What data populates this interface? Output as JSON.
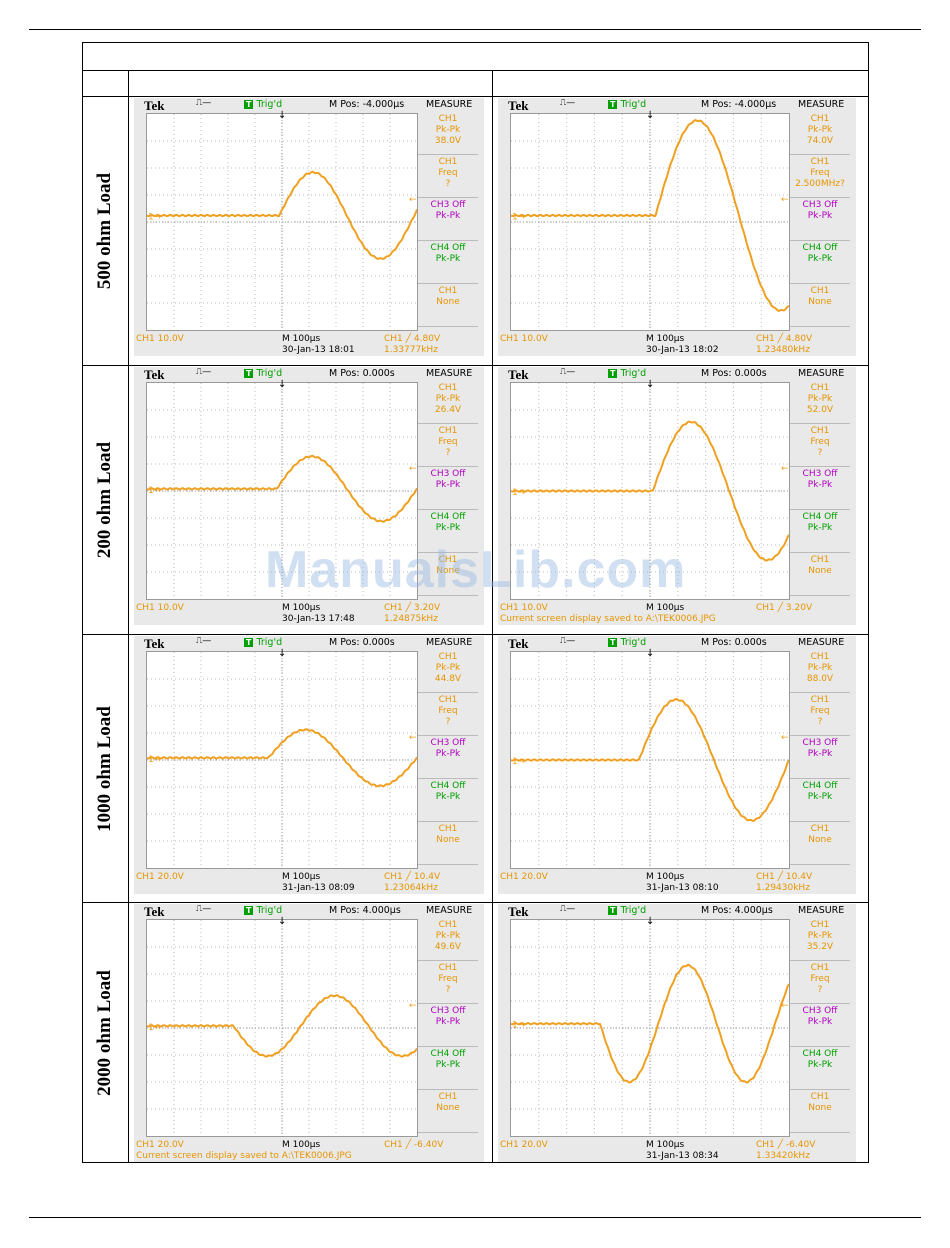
{
  "watermark": "ManualsLib.com",
  "rows": [
    {
      "label": "500 ohm Load",
      "scopes": [
        {
          "brand": "Tek",
          "trig": "Trig'd",
          "mpos": "M Pos: -4.000µs",
          "measure": "MEASURE",
          "m1": [
            "CH1",
            "Pk-Pk",
            "38.0V"
          ],
          "m2": [
            "CH1",
            "Freq",
            "?"
          ],
          "m3": [
            "CH3 Off",
            "Pk-Pk"
          ],
          "m4": [
            "CH4 Off",
            "Pk-Pk"
          ],
          "m5": [
            "CH1",
            "None"
          ],
          "ch1": "CH1  10.0V",
          "mtime": "M 100µs",
          "trigset": "CH1 ╱ 4.80V",
          "date": "30-Jan-13 18:01",
          "freq": "1.33777kHz",
          "msg": ""
        },
        {
          "brand": "Tek",
          "trig": "Trig'd",
          "mpos": "M Pos: -4.000µs",
          "measure": "MEASURE",
          "m1": [
            "CH1",
            "Pk-Pk",
            "74.0V"
          ],
          "m2": [
            "CH1",
            "Freq",
            "2.500MHz?"
          ],
          "m3": [
            "CH3 Off",
            "Pk-Pk"
          ],
          "m4": [
            "CH4 Off",
            "Pk-Pk"
          ],
          "m5": [
            "CH1",
            "None"
          ],
          "ch1": "CH1  10.0V",
          "mtime": "M 100µs",
          "trigset": "CH1 ╱ 4.80V",
          "date": "30-Jan-13 18:02",
          "freq": "1.23480kHz",
          "msg": ""
        }
      ]
    },
    {
      "label": "200 ohm Load",
      "scopes": [
        {
          "brand": "Tek",
          "trig": "Trig'd",
          "mpos": "M Pos: 0.000s",
          "measure": "MEASURE",
          "m1": [
            "CH1",
            "Pk-Pk",
            "26.4V"
          ],
          "m2": [
            "CH1",
            "Freq",
            "?"
          ],
          "m3": [
            "CH3 Off",
            "Pk-Pk"
          ],
          "m4": [
            "CH4 Off",
            "Pk-Pk"
          ],
          "m5": [
            "CH1",
            "None"
          ],
          "ch1": "CH1  10.0V",
          "mtime": "M 100µs",
          "trigset": "CH1 ╱ 3.20V",
          "date": "30-Jan-13 17:48",
          "freq": "1.24875kHz",
          "msg": ""
        },
        {
          "brand": "Tek",
          "trig": "Trig'd",
          "mpos": "M Pos: 0.000s",
          "measure": "MEASURE",
          "m1": [
            "CH1",
            "Pk-Pk",
            "52.0V"
          ],
          "m2": [
            "CH1",
            "Freq",
            "?"
          ],
          "m3": [
            "CH3 Off",
            "Pk-Pk"
          ],
          "m4": [
            "CH4 Off",
            "Pk-Pk"
          ],
          "m5": [
            "CH1",
            "None"
          ],
          "ch1": "CH1  10.0V",
          "mtime": "M 100µs",
          "trigset": "CH1 ╱ 3.20V",
          "date": "",
          "freq": "",
          "msg": "Current screen display saved to A:\\TEK0006.JPG"
        }
      ]
    },
    {
      "label": "1000 ohm Load",
      "scopes": [
        {
          "brand": "Tek",
          "trig": "Trig'd",
          "mpos": "M Pos: 0.000s",
          "measure": "MEASURE",
          "m1": [
            "CH1",
            "Pk-Pk",
            "44.8V"
          ],
          "m2": [
            "CH1",
            "Freq",
            "?"
          ],
          "m3": [
            "CH3 Off",
            "Pk-Pk"
          ],
          "m4": [
            "CH4 Off",
            "Pk-Pk"
          ],
          "m5": [
            "CH1",
            "None"
          ],
          "ch1": "CH1  20.0V",
          "mtime": "M 100µs",
          "trigset": "CH1 ╱ 10.4V",
          "date": "31-Jan-13 08:09",
          "freq": "1.23064kHz",
          "msg": ""
        },
        {
          "brand": "Tek",
          "trig": "Trig'd",
          "mpos": "M Pos: 0.000s",
          "measure": "MEASURE",
          "m1": [
            "CH1",
            "Pk-Pk",
            "88.0V"
          ],
          "m2": [
            "CH1",
            "Freq",
            "?"
          ],
          "m3": [
            "CH3 Off",
            "Pk-Pk"
          ],
          "m4": [
            "CH4 Off",
            "Pk-Pk"
          ],
          "m5": [
            "CH1",
            "None"
          ],
          "ch1": "CH1  20.0V",
          "mtime": "M 100µs",
          "trigset": "CH1 ╱ 10.4V",
          "date": "31-Jan-13 08:10",
          "freq": "1.29430kHz",
          "msg": ""
        }
      ]
    },
    {
      "label": "2000 ohm Load",
      "scopes": [
        {
          "brand": "Tek",
          "trig": "Trig'd",
          "mpos": "M Pos: 4.000µs",
          "measure": "MEASURE",
          "m1": [
            "CH1",
            "Pk-Pk",
            "49.6V"
          ],
          "m2": [
            "CH1",
            "Freq",
            "?"
          ],
          "m3": [
            "CH3 Off",
            "Pk-Pk"
          ],
          "m4": [
            "CH4 Off",
            "Pk-Pk"
          ],
          "m5": [
            "CH1",
            "None"
          ],
          "ch1": "CH1  20.0V",
          "mtime": "M 100µs",
          "trigset": "CH1 ╱ -6.40V",
          "date": "",
          "freq": "",
          "msg": "Current screen display saved to A:\\TEK0006.JPG"
        },
        {
          "brand": "Tek",
          "trig": "Trig'd",
          "mpos": "M Pos: 4.000µs",
          "measure": "MEASURE",
          "m1": [
            "CH1",
            "Pk-Pk",
            "35.2V"
          ],
          "m2": [
            "CH1",
            "Freq",
            "?"
          ],
          "m3": [
            "CH3 Off",
            "Pk-Pk"
          ],
          "m4": [
            "CH4 Off",
            "Pk-Pk"
          ],
          "m5": [
            "CH1",
            "None"
          ],
          "ch1": "CH1  20.0V",
          "mtime": "M 100µs",
          "trigset": "CH1 ╱ -6.40V",
          "date": "31-Jan-13 08:34",
          "freq": "1.33420kHz",
          "msg": ""
        }
      ]
    }
  ],
  "colors": {
    "trace": "#f0a020",
    "ch3": "#b000c0",
    "ch4": "#00a000"
  }
}
